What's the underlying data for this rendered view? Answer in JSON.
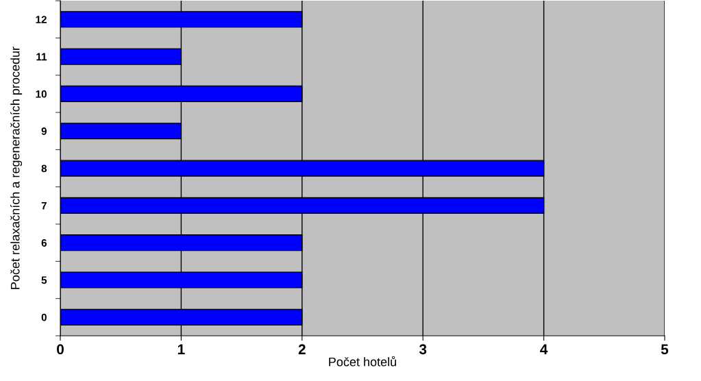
{
  "chart_data": {
    "type": "bar",
    "orientation": "horizontal",
    "categories": [
      "12",
      "11",
      "10",
      "9",
      "8",
      "7",
      "6",
      "5",
      "0"
    ],
    "values": [
      2,
      1,
      2,
      1,
      4,
      4,
      2,
      2,
      2
    ],
    "color": "#0000ff",
    "xlim": [
      0,
      5
    ],
    "xticks": [
      0,
      1,
      2,
      3,
      4,
      5
    ],
    "xlabel": "Počet hotelů",
    "ylabel": "Počet relaxačních a regeneračních procedur",
    "grid": "x",
    "legend": false
  }
}
